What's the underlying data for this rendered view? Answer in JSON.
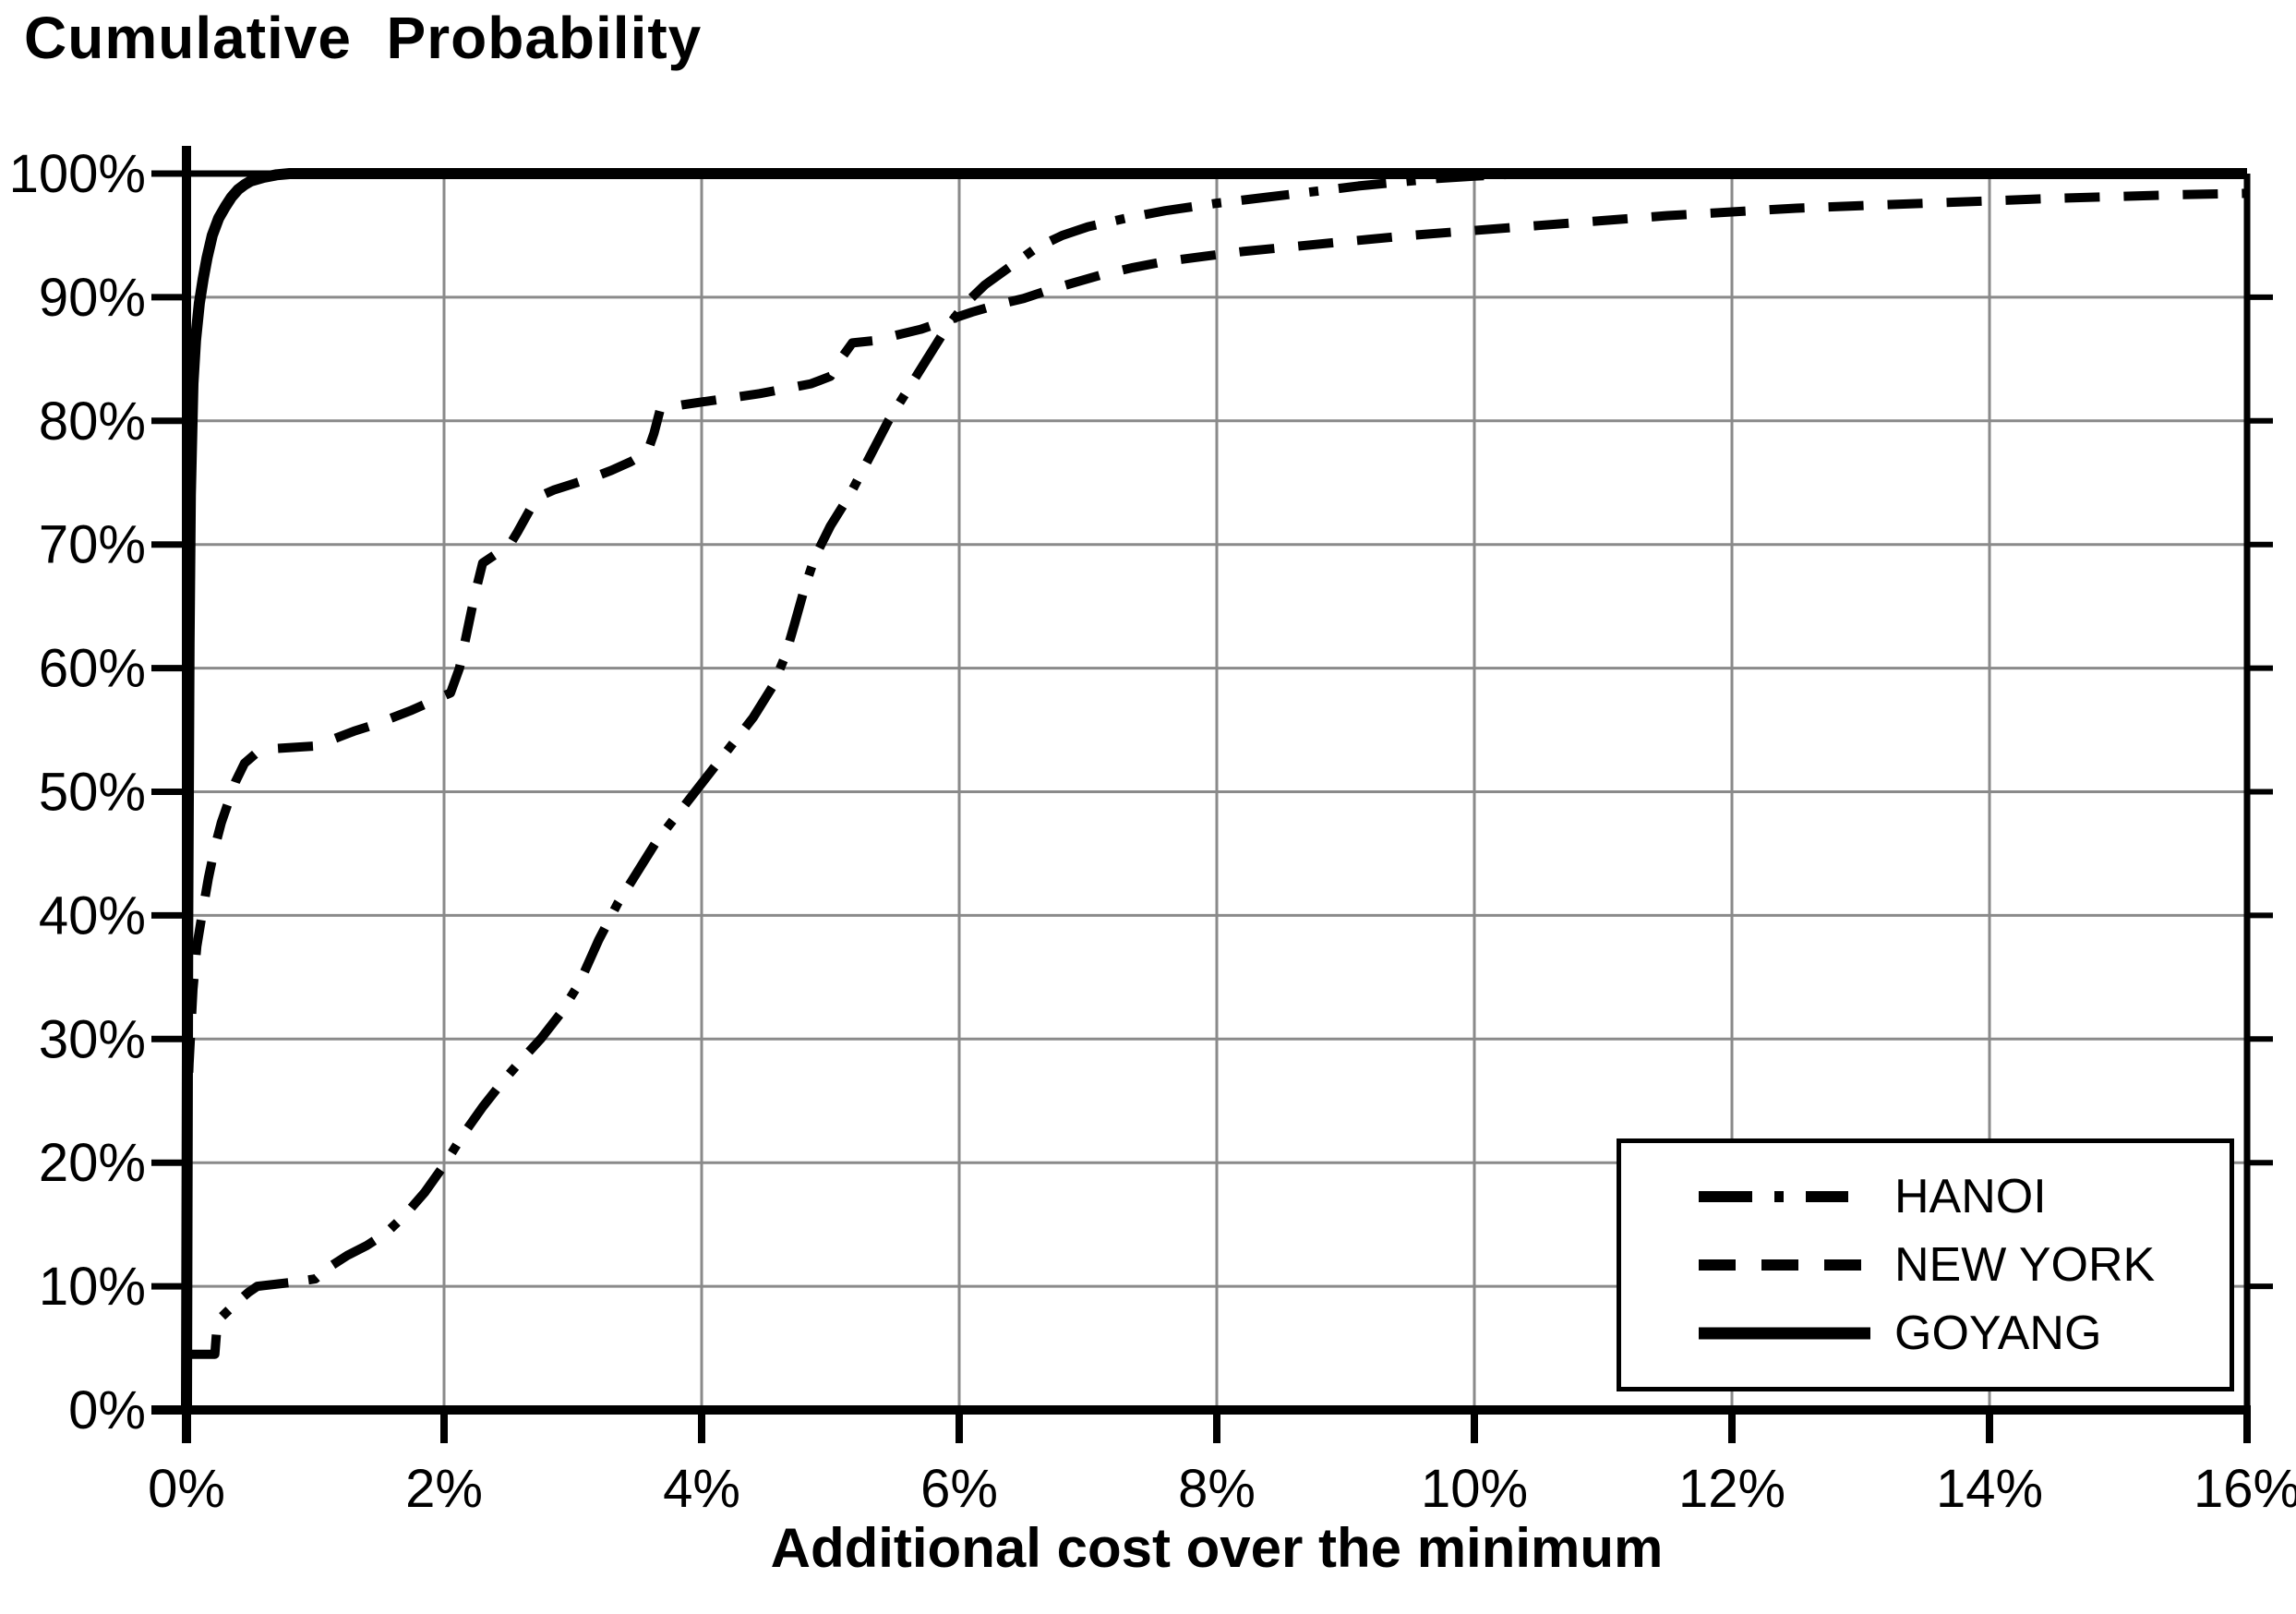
{
  "figure": {
    "title": "Cumulative  Probability",
    "x_axis_title": "Additional cost over the minimum"
  },
  "colors": {
    "line": "#000000",
    "grid": "#8a8a8a",
    "axis": "#000000",
    "background": "#ffffff",
    "legend_border": "#000000"
  },
  "chart_data": {
    "type": "line",
    "title": "Cumulative Probability",
    "xlabel": "Additional cost over the minimum",
    "ylabel": "",
    "xlim": [
      0,
      16
    ],
    "ylim": [
      0,
      100
    ],
    "x_tick_values": [
      0,
      2,
      4,
      6,
      8,
      10,
      12,
      14,
      16
    ],
    "x_ticks": [
      "0%",
      "2%",
      "4%",
      "6%",
      "8%",
      "10%",
      "12%",
      "14%",
      "16%"
    ],
    "y_tick_values": [
      0,
      10,
      20,
      30,
      40,
      50,
      60,
      70,
      80,
      90,
      100
    ],
    "y_ticks": [
      "0%",
      "10%",
      "20%",
      "30%",
      "40%",
      "50%",
      "60%",
      "70%",
      "80%",
      "90%",
      "100%"
    ],
    "grid": true,
    "legend_position": "lower right",
    "series": [
      {
        "name": "HANOI",
        "style": "dashdot",
        "points": [
          [
            0,
            4.5
          ],
          [
            0.22,
            4.5
          ],
          [
            0.24,
            7.2
          ],
          [
            0.3,
            7.8
          ],
          [
            0.38,
            8.6
          ],
          [
            0.48,
            9.5
          ],
          [
            0.55,
            10
          ],
          [
            0.8,
            10.3
          ],
          [
            1.0,
            10.6
          ],
          [
            1.1,
            11.5
          ],
          [
            1.25,
            12.5
          ],
          [
            1.4,
            13.3
          ],
          [
            1.55,
            14.3
          ],
          [
            1.7,
            15.8
          ],
          [
            1.85,
            17.6
          ],
          [
            2.0,
            19.8
          ],
          [
            2.15,
            22.3
          ],
          [
            2.3,
            24.5
          ],
          [
            2.45,
            26.5
          ],
          [
            2.6,
            28.3
          ],
          [
            2.75,
            30
          ],
          [
            2.9,
            32
          ],
          [
            3.05,
            34.5
          ],
          [
            3.2,
            38
          ],
          [
            3.35,
            41
          ],
          [
            3.5,
            43.5
          ],
          [
            3.65,
            46
          ],
          [
            3.8,
            48
          ],
          [
            3.95,
            50
          ],
          [
            4.1,
            52
          ],
          [
            4.25,
            54
          ],
          [
            4.4,
            56
          ],
          [
            4.55,
            58.5
          ],
          [
            4.65,
            61
          ],
          [
            4.72,
            63.5
          ],
          [
            4.8,
            66.5
          ],
          [
            4.88,
            69
          ],
          [
            5.0,
            71.5
          ],
          [
            5.15,
            74
          ],
          [
            5.3,
            77
          ],
          [
            5.45,
            80
          ],
          [
            5.6,
            82.5
          ],
          [
            5.75,
            85
          ],
          [
            5.9,
            87.5
          ],
          [
            6.05,
            89.5
          ],
          [
            6.2,
            91
          ],
          [
            6.4,
            92.5
          ],
          [
            6.6,
            94
          ],
          [
            6.8,
            95
          ],
          [
            7.0,
            95.7
          ],
          [
            7.3,
            96.4
          ],
          [
            7.6,
            97
          ],
          [
            8.0,
            97.6
          ],
          [
            8.4,
            98.1
          ],
          [
            8.8,
            98.6
          ],
          [
            9.1,
            99
          ],
          [
            9.4,
            99.3
          ],
          [
            9.7,
            99.6
          ],
          [
            10.0,
            99.8
          ],
          [
            10.4,
            100
          ],
          [
            16,
            100
          ]
        ]
      },
      {
        "name": "NEW YORK",
        "style": "dashed",
        "points": [
          [
            0,
            22.5
          ],
          [
            0.02,
            28
          ],
          [
            0.05,
            34
          ],
          [
            0.08,
            37.5
          ],
          [
            0.12,
            40
          ],
          [
            0.17,
            43
          ],
          [
            0.22,
            45.5
          ],
          [
            0.27,
            47.5
          ],
          [
            0.32,
            49
          ],
          [
            0.38,
            50.8
          ],
          [
            0.45,
            52.3
          ],
          [
            0.55,
            53.2
          ],
          [
            0.7,
            53.5
          ],
          [
            1.0,
            53.7
          ],
          [
            1.15,
            54.3
          ],
          [
            1.3,
            54.9
          ],
          [
            1.45,
            55.4
          ],
          [
            1.6,
            56
          ],
          [
            1.75,
            56.6
          ],
          [
            1.9,
            57.3
          ],
          [
            2.05,
            58
          ],
          [
            2.12,
            60
          ],
          [
            2.18,
            63
          ],
          [
            2.24,
            66
          ],
          [
            2.3,
            68.5
          ],
          [
            2.4,
            69.2
          ],
          [
            2.5,
            69.8
          ],
          [
            2.57,
            71
          ],
          [
            2.65,
            72.5
          ],
          [
            2.72,
            73.8
          ],
          [
            2.85,
            74.4
          ],
          [
            3.0,
            74.9
          ],
          [
            3.15,
            75.4
          ],
          [
            3.3,
            76
          ],
          [
            3.45,
            76.7
          ],
          [
            3.58,
            77.5
          ],
          [
            3.63,
            79
          ],
          [
            3.68,
            81
          ],
          [
            3.85,
            81.3
          ],
          [
            4.05,
            81.6
          ],
          [
            4.25,
            81.9
          ],
          [
            4.45,
            82.2
          ],
          [
            4.65,
            82.6
          ],
          [
            4.85,
            83
          ],
          [
            5.0,
            83.6
          ],
          [
            5.08,
            85
          ],
          [
            5.17,
            86.3
          ],
          [
            5.35,
            86.5
          ],
          [
            5.5,
            86.9
          ],
          [
            5.7,
            87.4
          ],
          [
            5.9,
            88.1
          ],
          [
            6.1,
            88.8
          ],
          [
            6.3,
            89.4
          ],
          [
            6.5,
            89.9
          ],
          [
            6.7,
            90.6
          ],
          [
            6.9,
            91.2
          ],
          [
            7.1,
            91.8
          ],
          [
            7.35,
            92.4
          ],
          [
            7.6,
            92.9
          ],
          [
            7.9,
            93.3
          ],
          [
            8.2,
            93.7
          ],
          [
            8.6,
            94.1
          ],
          [
            9.0,
            94.5
          ],
          [
            9.5,
            95
          ],
          [
            10.0,
            95.4
          ],
          [
            10.5,
            95.8
          ],
          [
            11.0,
            96.2
          ],
          [
            11.5,
            96.6
          ],
          [
            12.0,
            96.9
          ],
          [
            12.5,
            97.2
          ],
          [
            13.0,
            97.4
          ],
          [
            13.5,
            97.6
          ],
          [
            14.0,
            97.8
          ],
          [
            14.5,
            98.0
          ],
          [
            15.0,
            98.15
          ],
          [
            15.5,
            98.3
          ],
          [
            16.0,
            98.4
          ]
        ]
      },
      {
        "name": "GOYANG",
        "style": "solid",
        "points": [
          [
            0,
            0
          ],
          [
            0.01,
            40
          ],
          [
            0.02,
            62
          ],
          [
            0.03,
            74
          ],
          [
            0.05,
            83
          ],
          [
            0.07,
            86.5
          ],
          [
            0.1,
            89.5
          ],
          [
            0.13,
            91.5
          ],
          [
            0.16,
            93.2
          ],
          [
            0.2,
            95
          ],
          [
            0.25,
            96.4
          ],
          [
            0.3,
            97.3
          ],
          [
            0.35,
            98.1
          ],
          [
            0.4,
            98.7
          ],
          [
            0.45,
            99.1
          ],
          [
            0.5,
            99.4
          ],
          [
            0.6,
            99.7
          ],
          [
            0.7,
            99.9
          ],
          [
            0.8,
            100
          ],
          [
            16,
            100
          ]
        ]
      }
    ]
  }
}
